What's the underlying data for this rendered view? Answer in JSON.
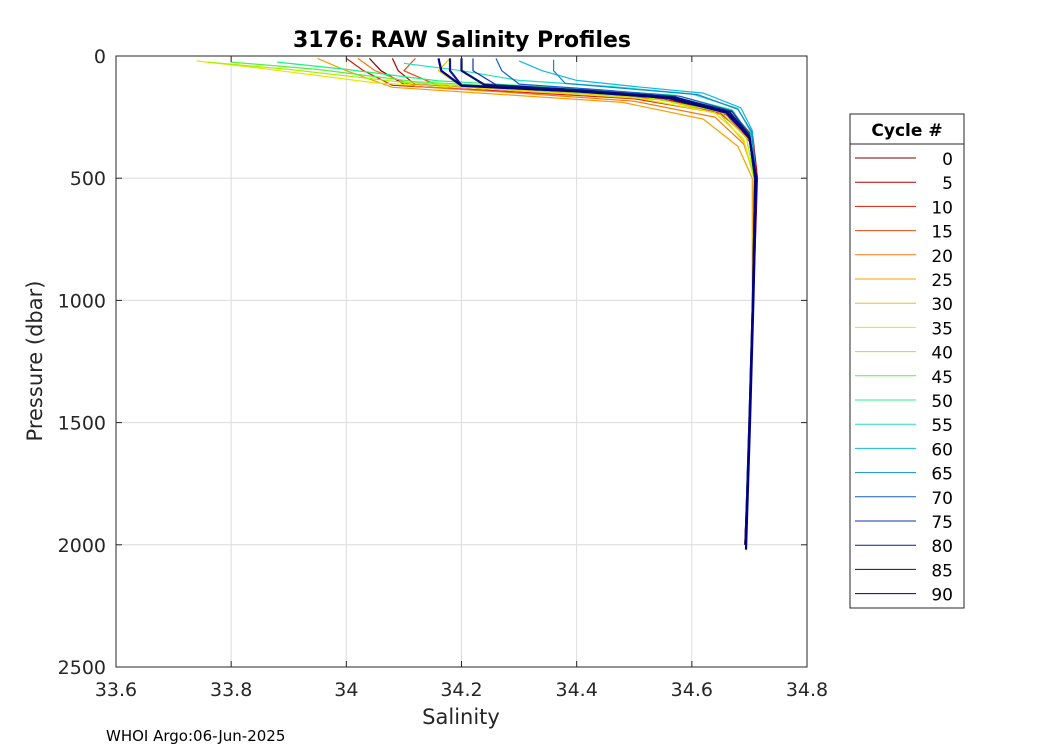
{
  "chart_data": {
    "type": "line",
    "title": "3176: RAW Salinity Profiles",
    "xlabel": "Salinity",
    "ylabel": "Pressure (dbar)",
    "xlim": [
      33.6,
      34.8
    ],
    "ylim": [
      0,
      2500
    ],
    "y_reversed": true,
    "grid": true,
    "x_ticks": [
      "33.6",
      "33.8",
      "34",
      "34.2",
      "34.4",
      "34.6",
      "34.8"
    ],
    "y_ticks": [
      "0",
      "500",
      "1000",
      "1500",
      "2000",
      "2500"
    ],
    "legend": {
      "title": "Cycle #",
      "position": "right-outside",
      "entries": [
        {
          "label": "0",
          "color": "#800000"
        },
        {
          "label": "5",
          "color": "#b30000"
        },
        {
          "label": "10",
          "color": "#dd1a00"
        },
        {
          "label": "15",
          "color": "#ee4a10"
        },
        {
          "label": "20",
          "color": "#f57a10"
        },
        {
          "label": "25",
          "color": "#f5a000"
        },
        {
          "label": "30",
          "color": "#e6c800"
        },
        {
          "label": "35",
          "color": "#e6e600"
        },
        {
          "label": "40",
          "color": "#a8f000"
        },
        {
          "label": "45",
          "color": "#55f040"
        },
        {
          "label": "50",
          "color": "#20f080"
        },
        {
          "label": "55",
          "color": "#20e0c0"
        },
        {
          "label": "60",
          "color": "#10b8e6"
        },
        {
          "label": "65",
          "color": "#1088d0"
        },
        {
          "label": "70",
          "color": "#1060c8"
        },
        {
          "label": "75",
          "color": "#1030b0"
        },
        {
          "label": "80",
          "color": "#0a1a90"
        },
        {
          "label": "85",
          "color": "#081070"
        },
        {
          "label": "90",
          "color": "#00008b"
        }
      ]
    },
    "series": [
      {
        "cycle": 0,
        "x": [
          34.04,
          34.06,
          34.1,
          34.3,
          34.52,
          34.66,
          34.7,
          34.71,
          34.706,
          34.7,
          34.696,
          34.692
        ],
        "y": [
          10,
          60,
          115,
          140,
          170,
          225,
          320,
          500,
          1000,
          1500,
          1800,
          2000
        ]
      },
      {
        "cycle": 5,
        "x": [
          34.08,
          34.09,
          34.12,
          34.32,
          34.54,
          34.67,
          34.706,
          34.714,
          34.707,
          34.7,
          34.696,
          34.692
        ],
        "y": [
          10,
          60,
          118,
          142,
          172,
          228,
          330,
          500,
          1000,
          1500,
          1800,
          2000
        ]
      },
      {
        "cycle": 10,
        "x": [
          34.0,
          34.03,
          34.08,
          34.28,
          34.5,
          34.65,
          34.7,
          34.712,
          34.707,
          34.7,
          34.696,
          34.693
        ],
        "y": [
          10,
          60,
          120,
          145,
          175,
          235,
          340,
          500,
          1000,
          1500,
          1800,
          2000
        ]
      },
      {
        "cycle": 15,
        "x": [
          34.12,
          34.1,
          34.16,
          34.35,
          34.55,
          34.66,
          34.7,
          34.713,
          34.707,
          34.701,
          34.697,
          34.693
        ],
        "y": [
          10,
          60,
          122,
          148,
          178,
          240,
          350,
          500,
          1000,
          1500,
          1800,
          2000
        ]
      },
      {
        "cycle": 20,
        "x": [
          34.02,
          34.05,
          34.12,
          34.3,
          34.5,
          34.64,
          34.69,
          34.71,
          34.706,
          34.7,
          34.696,
          34.692
        ],
        "y": [
          10,
          60,
          125,
          152,
          185,
          250,
          360,
          500,
          1000,
          1500,
          1800,
          2000
        ]
      },
      {
        "cycle": 25,
        "x": [
          33.95,
          34.0,
          34.08,
          34.26,
          34.48,
          34.62,
          34.68,
          34.705,
          34.705,
          34.7,
          34.696,
          34.692
        ],
        "y": [
          10,
          60,
          128,
          156,
          190,
          258,
          370,
          500,
          1000,
          1500,
          1800,
          2000
        ]
      },
      {
        "cycle": 30,
        "x": [
          34.18,
          34.16,
          34.2,
          34.36,
          34.55,
          34.65,
          34.69,
          34.708,
          34.706,
          34.7,
          34.696,
          34.693
        ],
        "y": [
          10,
          60,
          126,
          150,
          180,
          240,
          350,
          500,
          1000,
          1500,
          1800,
          2000
        ]
      },
      {
        "cycle": 35,
        "x": [
          33.74,
          33.85,
          34.05,
          34.28,
          34.5,
          34.64,
          34.69,
          34.708,
          34.706,
          34.7,
          34.696,
          34.693
        ],
        "y": [
          20,
          50,
          110,
          138,
          170,
          232,
          340,
          500,
          1000,
          1500,
          1800,
          2000
        ]
      },
      {
        "cycle": 40,
        "x": [
          33.76,
          33.9,
          34.1,
          34.3,
          34.52,
          34.65,
          34.695,
          34.708,
          34.706,
          34.7,
          34.696,
          34.693
        ],
        "y": [
          25,
          55,
          108,
          135,
          168,
          228,
          335,
          500,
          1000,
          1500,
          1800,
          2000
        ]
      },
      {
        "cycle": 45,
        "x": [
          33.8,
          33.95,
          34.12,
          34.33,
          34.55,
          34.66,
          34.7,
          34.708,
          34.706,
          34.7,
          34.696,
          34.693
        ],
        "y": [
          25,
          55,
          105,
          132,
          165,
          225,
          330,
          500,
          1000,
          1500,
          1800,
          2000
        ]
      },
      {
        "cycle": 50,
        "x": [
          33.88,
          34.0,
          34.16,
          34.36,
          34.57,
          34.67,
          34.7,
          34.709,
          34.706,
          34.7,
          34.696,
          34.693
        ],
        "y": [
          25,
          55,
          102,
          128,
          160,
          220,
          320,
          500,
          1000,
          1500,
          1800,
          2000
        ]
      },
      {
        "cycle": 55,
        "x": [
          34.1,
          34.2,
          34.3,
          34.46,
          34.6,
          34.68,
          34.702,
          34.71,
          34.706,
          34.7,
          34.696,
          34.693
        ],
        "y": [
          30,
          60,
          100,
          125,
          155,
          215,
          310,
          500,
          1000,
          1500,
          1800,
          2000
        ]
      },
      {
        "cycle": 60,
        "x": [
          34.3,
          34.34,
          34.4,
          34.5,
          34.62,
          34.685,
          34.705,
          34.711,
          34.706,
          34.7,
          34.696,
          34.693
        ],
        "y": [
          20,
          60,
          100,
          125,
          152,
          212,
          305,
          500,
          1000,
          1500,
          1800,
          2000
        ]
      },
      {
        "cycle": 65,
        "x": [
          34.36,
          34.36,
          34.38,
          34.48,
          34.61,
          34.68,
          34.704,
          34.711,
          34.706,
          34.7,
          34.696,
          34.693
        ],
        "y": [
          15,
          60,
          112,
          132,
          158,
          218,
          310,
          500,
          1000,
          1500,
          1800,
          2000
        ]
      },
      {
        "cycle": 70,
        "x": [
          34.26,
          34.27,
          34.3,
          34.44,
          34.58,
          34.67,
          34.7,
          34.71,
          34.706,
          34.7,
          34.696,
          34.693
        ],
        "y": [
          10,
          60,
          115,
          138,
          165,
          225,
          320,
          500,
          1000,
          1500,
          1800,
          2000
        ]
      },
      {
        "cycle": 75,
        "x": [
          34.22,
          34.22,
          34.26,
          34.42,
          34.57,
          34.67,
          34.7,
          34.71,
          34.706,
          34.7,
          34.696,
          34.693
        ],
        "y": [
          10,
          60,
          118,
          140,
          168,
          228,
          325,
          500,
          1000,
          1500,
          1800,
          2000
        ]
      },
      {
        "cycle": 80,
        "x": [
          34.18,
          34.18,
          34.2,
          34.4,
          34.56,
          34.66,
          34.7,
          34.71,
          34.706,
          34.7,
          34.696,
          34.693
        ],
        "y": [
          10,
          60,
          120,
          142,
          170,
          230,
          330,
          500,
          1000,
          1500,
          1800,
          2000
        ]
      },
      {
        "cycle": 85,
        "x": [
          34.2,
          34.2,
          34.24,
          34.41,
          34.57,
          34.665,
          34.7,
          34.71,
          34.706,
          34.7,
          34.696,
          34.693
        ],
        "y": [
          10,
          60,
          118,
          141,
          169,
          229,
          328,
          500,
          1000,
          1500,
          1800,
          2000
        ]
      },
      {
        "cycle": 90,
        "x": [
          34.16,
          34.165,
          34.2,
          34.4,
          34.56,
          34.66,
          34.7,
          34.712,
          34.707,
          34.701,
          34.697,
          34.694
        ],
        "y": [
          10,
          60,
          122,
          145,
          172,
          232,
          335,
          500,
          1000,
          1500,
          1800,
          2020
        ]
      }
    ]
  },
  "footer": {
    "text": "WHOI Argo:06-Jun-2025"
  }
}
